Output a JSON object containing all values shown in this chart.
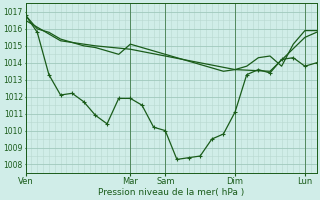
{
  "bg_color": "#d0ede8",
  "grid_color_major": "#a0c8bc",
  "grid_color_minor": "#b8d8d0",
  "line_color": "#1a5c1a",
  "xlabel": "Pression niveau de la mer( hPa )",
  "ylim": [
    1007.5,
    1017.5
  ],
  "yticks": [
    1008,
    1009,
    1010,
    1011,
    1012,
    1013,
    1014,
    1015,
    1016,
    1017
  ],
  "xlim": [
    0,
    25
  ],
  "day_labels": [
    "Ven",
    "Mar",
    "Sam",
    "Dim",
    "Lun"
  ],
  "day_positions": [
    0,
    9,
    12,
    18,
    24
  ],
  "line1_x": [
    0,
    1,
    2,
    3,
    4,
    5,
    6,
    7,
    8,
    9,
    10,
    11,
    12,
    13,
    14,
    15,
    16,
    17,
    18,
    19,
    20,
    21,
    22,
    23,
    24,
    25
  ],
  "line1_y": [
    1016.8,
    1016.0,
    1015.8,
    1015.4,
    1015.2,
    1015.0,
    1014.9,
    1014.7,
    1014.5,
    1015.1,
    1014.9,
    1014.7,
    1014.5,
    1014.3,
    1014.1,
    1013.9,
    1013.7,
    1013.5,
    1013.6,
    1013.8,
    1014.3,
    1014.4,
    1013.8,
    1015.1,
    1015.9,
    1015.9
  ],
  "line2_x": [
    0,
    3,
    6,
    9,
    12,
    15,
    18,
    21,
    24,
    25
  ],
  "line2_y": [
    1016.5,
    1015.3,
    1015.0,
    1014.8,
    1014.4,
    1014.0,
    1013.6,
    1013.5,
    1015.5,
    1015.8
  ],
  "line3_x": [
    0,
    1,
    2,
    3,
    4,
    5,
    6,
    7,
    8,
    9,
    10,
    11,
    12,
    13,
    14,
    15,
    16,
    17,
    18,
    19,
    20,
    21,
    22,
    23,
    24,
    25
  ],
  "line3_y": [
    1016.8,
    1015.8,
    1013.3,
    1012.1,
    1012.2,
    1011.7,
    1010.9,
    1010.4,
    1011.9,
    1011.9,
    1011.5,
    1010.2,
    1010.0,
    1008.3,
    1008.4,
    1008.5,
    1009.5,
    1009.8,
    1011.1,
    1013.3,
    1013.6,
    1013.4,
    1014.2,
    1014.3,
    1013.8,
    1014.0
  ]
}
